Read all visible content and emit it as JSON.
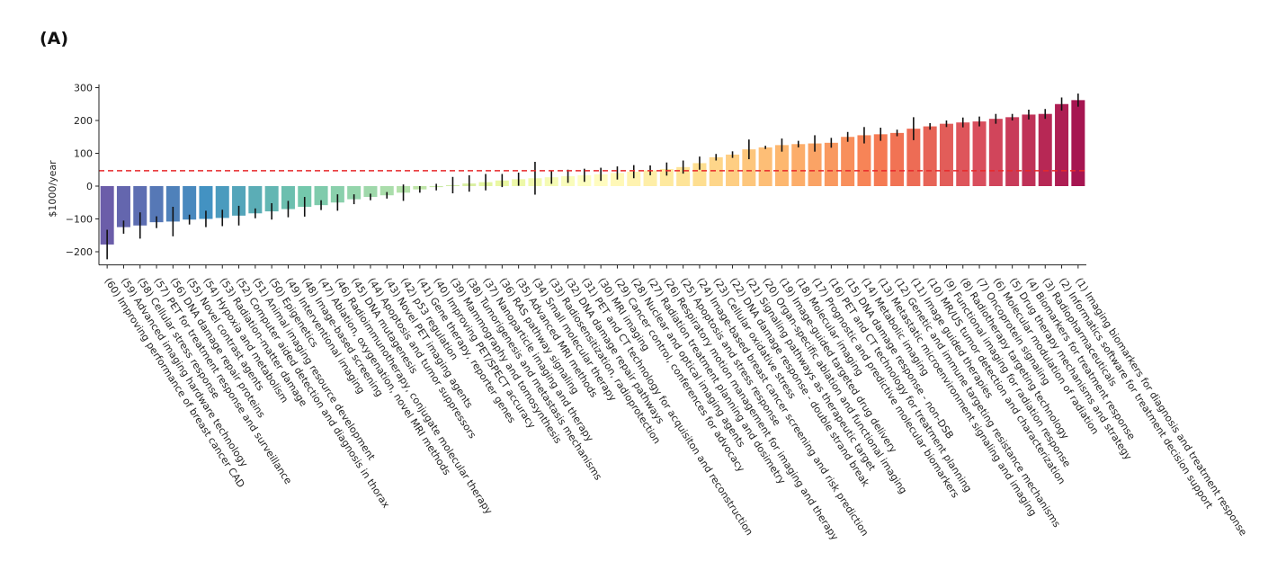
{
  "panel_label": "(A)",
  "chart_data": {
    "type": "bar",
    "ylabel": "$1000/year",
    "ylim": [
      -240,
      310
    ],
    "yticks": [
      -200,
      -100,
      0,
      100,
      200,
      300
    ],
    "reference_line": {
      "value": 47,
      "color": "#e8282a",
      "style": "dashed"
    },
    "grid": false,
    "legend": "none",
    "colormap": "Spectral (blue to red, left to right)",
    "categories": [
      "(60) Improving performance of breast cancer CAD",
      "(59) Advanced imaging hardware technology",
      "(58) Cellular stress response",
      "(57) PET for treatment response and surveillance",
      "(56) DNA damage repair proteins",
      "(55) Novel contrast agents",
      "(54) Hypoxia and metabolism",
      "(53) Radiation-matter damage",
      "(52) Computer aided detection and diagnosis in thorax",
      "(51) Animal imaging resource development",
      "(50) Epigenetics",
      "(49) Interventional imaging",
      "(48) Image-based screening",
      "(47) Ablation, oxygenation, novel MRI methods",
      "(46) Radioimmunotherapy, conjugate molecular therapy",
      "(45) DNA mutagenesis",
      "(44) Apoptosis and tumor suppressors",
      "(43) Novel PET imaging agents",
      "(42) p53 regulation",
      "(41) Gene therapy, reporter genes",
      "(40) Improving PET/SPECT accuracy",
      "(39) Mammography and tomosynthesis",
      "(38) Tumorigenesis and metastasis mechanisms",
      "(37) Nanoparticle imaging and therapy",
      "(36) RAS pathway signaling",
      "(35) Advanced MRI methods",
      "(34) Small molecular therapy",
      "(33) Radiosensitization, radioprotection",
      "(32) DNA damage repair pathways",
      "(31) PET and CT technology for acquisiton and reconstruction",
      "(30) MRI imaging",
      "(29) Cancer control, conferences for advocacy",
      "(28) Nuclear and optical imaging agents",
      "(27) Radiation treatment planning and dosimetry",
      "(26) Respiratory motion management for imaging and therapy",
      "(25) Apoptosis and stress response",
      "(24) Image-based breast cancer screening and risk prediction",
      "(23) Cellular oxidative stress",
      "(22) DNA damage response - double strand break",
      "(21) Signaling pathways as therapeutic target",
      "(20) Organ-specific ablation and functional imaging",
      "(19) Image-guided targeted drug delivery",
      "(18) Molecular imaging",
      "(17) Prognostic and predictive molecular biomarkers",
      "(16) PET and CT technology for treatment planning",
      "(15) DNA damage response - non-DSB",
      "(14) Metabolic imaging",
      "(13) Metastatic microenvironment signaling and imaging",
      "(12) Genetic and immune targeting resistance mechanisms",
      "(11) Image guided therapies",
      "(10) MR/US tumor detection and characterization",
      "(9) Functional imaging for radiation response",
      "(8) Radiotherapy targeting technology",
      "(7) Oncoprotein signaling",
      "(6) Molecular modulation of radiation",
      "(5) Drug therapy mechanisms and strategy",
      "(4) Biomarkers for treatment response",
      "(3) Radiopharmaceuticals",
      "(2) Informatics software for treatment decision support",
      "(1) Imaging biomarkers for diagnosis and treatment response"
    ],
    "values": [
      -178,
      -125,
      -120,
      -110,
      -108,
      -102,
      -100,
      -97,
      -90,
      -83,
      -77,
      -70,
      -63,
      -58,
      -50,
      -40,
      -33,
      -28,
      -20,
      -10,
      -3,
      3,
      8,
      12,
      17,
      21,
      24,
      27,
      30,
      33,
      36,
      40,
      44,
      48,
      52,
      58,
      70,
      88,
      96,
      112,
      118,
      125,
      128,
      130,
      132,
      150,
      155,
      158,
      162,
      175,
      182,
      190,
      194,
      197,
      205,
      210,
      218,
      220,
      250,
      262
    ],
    "errors": [
      45,
      20,
      40,
      18,
      45,
      15,
      25,
      25,
      30,
      15,
      25,
      25,
      30,
      15,
      25,
      15,
      10,
      10,
      25,
      10,
      10,
      25,
      25,
      25,
      20,
      20,
      50,
      20,
      20,
      20,
      20,
      20,
      20,
      15,
      20,
      20,
      20,
      10,
      10,
      30,
      5,
      20,
      10,
      25,
      15,
      15,
      25,
      20,
      10,
      35,
      10,
      10,
      15,
      15,
      15,
      10,
      15,
      15,
      20,
      20
    ]
  }
}
